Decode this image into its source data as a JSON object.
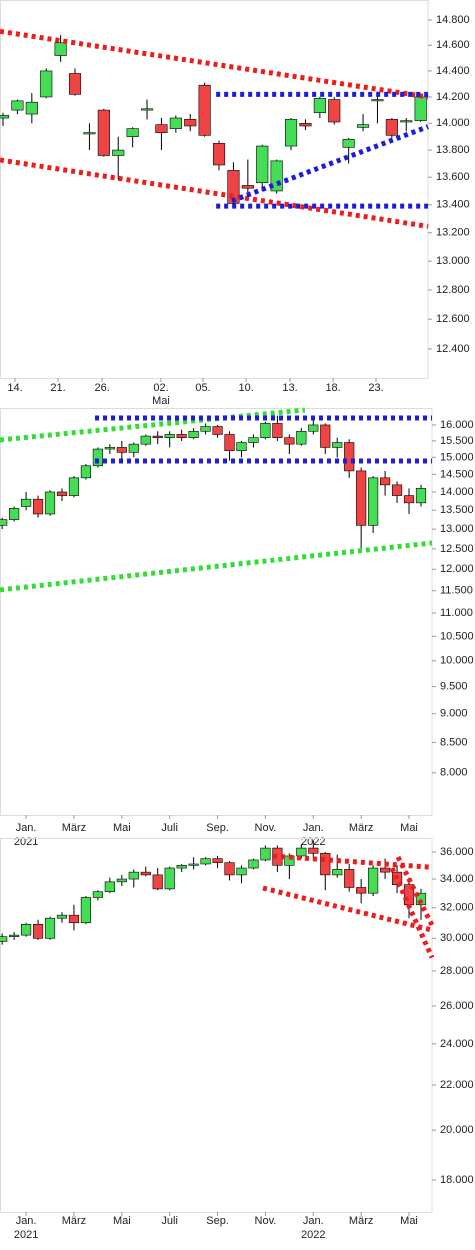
{
  "chart_data": [
    {
      "type": "candlestick",
      "log_scale": true,
      "up_color": "#44dd55",
      "down_color": "#ee4444",
      "xlim": [
        -0.21,
        29.51
      ],
      "ylim": [
        12208,
        14960
      ],
      "x": [
        0,
        1,
        2,
        3,
        4,
        5,
        6,
        7,
        8,
        9,
        10,
        11,
        12,
        13,
        14,
        15,
        16,
        17,
        18,
        19,
        20,
        21,
        22,
        23,
        24,
        25,
        26,
        27,
        28,
        29
      ],
      "candles": [
        [
          14040,
          14080,
          13980,
          14060
        ],
        [
          14100,
          14180,
          14070,
          14170
        ],
        [
          14070,
          14230,
          14000,
          14160
        ],
        [
          14200,
          14420,
          14190,
          14400
        ],
        [
          14520,
          14680,
          14470,
          14620
        ],
        [
          14380,
          14420,
          14210,
          14220
        ],
        [
          13920,
          14000,
          13800,
          13930
        ],
        [
          14100,
          14110,
          13750,
          13760
        ],
        [
          13760,
          13900,
          13580,
          13800
        ],
        [
          13900,
          13970,
          13820,
          13960
        ],
        [
          14100,
          14180,
          14030,
          14110
        ],
        [
          13990,
          14040,
          13800,
          13930
        ],
        [
          13960,
          14060,
          13930,
          14040
        ],
        [
          14030,
          14070,
          13940,
          13980
        ],
        [
          14290,
          14310,
          13900,
          13910
        ],
        [
          13850,
          13870,
          13650,
          13690
        ],
        [
          13650,
          13710,
          13380,
          13410
        ],
        [
          13540,
          13730,
          13450,
          13520
        ],
        [
          13560,
          13840,
          13500,
          13830
        ],
        [
          13500,
          13730,
          13480,
          13720
        ],
        [
          13830,
          14040,
          13800,
          14030
        ],
        [
          14000,
          14030,
          13950,
          13980
        ],
        [
          14080,
          14200,
          14040,
          14190
        ],
        [
          14180,
          14200,
          13990,
          14010
        ],
        [
          13820,
          13890,
          13700,
          13880
        ],
        [
          13970,
          14070,
          13940,
          13990
        ],
        [
          14170,
          14240,
          14000,
          14180
        ],
        [
          14030,
          14040,
          13890,
          13910
        ],
        [
          14010,
          14040,
          13940,
          14020
        ],
        [
          14020,
          14210,
          14010,
          14200
        ]
      ],
      "yticks": [
        {
          "value": 12400,
          "label": "12.400"
        },
        {
          "value": 12600,
          "label": "12.600"
        },
        {
          "value": 12800,
          "label": "12.800"
        },
        {
          "value": 13000,
          "label": "13.000"
        },
        {
          "value": 13200,
          "label": "13.200"
        },
        {
          "value": 13400,
          "label": "13.400"
        },
        {
          "value": 13600,
          "label": "13.600"
        },
        {
          "value": 13800,
          "label": "13.800"
        },
        {
          "value": 14000,
          "label": "14.000"
        },
        {
          "value": 14200,
          "label": "14.200"
        },
        {
          "value": 14400,
          "label": "14.400"
        },
        {
          "value": 14600,
          "label": "14.600"
        },
        {
          "value": 14800,
          "label": "14.800"
        }
      ],
      "xticks": [
        {
          "value": 0.83,
          "label": "14."
        },
        {
          "value": 3.82,
          "label": "21."
        },
        {
          "value": 6.88,
          "label": "26."
        },
        {
          "value": 10.97,
          "label": "02."
        },
        {
          "value": 13.89,
          "label": "05."
        },
        {
          "value": 16.88,
          "label": "10."
        },
        {
          "value": 19.93,
          "label": "13."
        },
        {
          "value": 22.92,
          "label": "18."
        },
        {
          "value": 25.9,
          "label": "23."
        }
      ],
      "sub_labels": [
        {
          "value": 10.97,
          "label": "Mai"
        }
      ],
      "trendlines": [
        {
          "color": "#ee1c1c",
          "points": [
            [
              -0.21,
              14710
            ],
            [
              29.51,
              14200
            ]
          ]
        },
        {
          "color": "#ee1c1c",
          "points": [
            [
              -0.21,
              13727
            ],
            [
              29.51,
              13245
            ]
          ]
        },
        {
          "color": "#1c1cdd",
          "points": [
            [
              14.8,
              14220
            ],
            [
              29.51,
              14220
            ]
          ]
        },
        {
          "color": "#1c1cdd",
          "points": [
            [
              14.8,
              13390
            ],
            [
              29.51,
              13390
            ]
          ]
        },
        {
          "color": "#1c1cdd",
          "points": [
            [
              15.9,
              13428
            ],
            [
              29.51,
              13975
            ]
          ]
        }
      ]
    },
    {
      "type": "candlestick",
      "log_scale": true,
      "up_color": "#44dd55",
      "down_color": "#ee4444",
      "xlim": [
        -1.09,
        16.96
      ],
      "ylim": [
        7355,
        16550
      ],
      "x": [
        -1,
        -0.5,
        0,
        0.5,
        1,
        1.5,
        2,
        2.5,
        3,
        3.5,
        4,
        4.5,
        5,
        5.5,
        6,
        6.5,
        7,
        7.5,
        8,
        8.5,
        9,
        9.5,
        10,
        10.5,
        11,
        11.5,
        12,
        12.5,
        13,
        13.5,
        14,
        14.5,
        15,
        15.5,
        16,
        16.5
      ],
      "candles": [
        [
          13100,
          13300,
          13000,
          13250
        ],
        [
          13250,
          13600,
          13200,
          13550
        ],
        [
          13600,
          14000,
          13500,
          13800
        ],
        [
          13800,
          13900,
          13300,
          13400
        ],
        [
          13400,
          14050,
          13350,
          14000
        ],
        [
          14000,
          14100,
          13750,
          13900
        ],
        [
          13900,
          14450,
          13850,
          14400
        ],
        [
          14400,
          14800,
          14350,
          14750
        ],
        [
          14750,
          15300,
          14700,
          15250
        ],
        [
          15250,
          15400,
          15100,
          15300
        ],
        [
          15300,
          15500,
          14900,
          15150
        ],
        [
          15150,
          15450,
          15000,
          15400
        ],
        [
          15400,
          15700,
          15350,
          15650
        ],
        [
          15650,
          15800,
          15400,
          15600
        ],
        [
          15600,
          15800,
          15300,
          15700
        ],
        [
          15700,
          15850,
          15500,
          15600
        ],
        [
          15600,
          15900,
          15550,
          15800
        ],
        [
          15800,
          16050,
          15700,
          15950
        ],
        [
          15950,
          16000,
          15600,
          15700
        ],
        [
          15700,
          15800,
          14900,
          15200
        ],
        [
          15200,
          15500,
          15000,
          15450
        ],
        [
          15450,
          15700,
          15300,
          15600
        ],
        [
          15600,
          16100,
          15550,
          16050
        ],
        [
          16050,
          16300,
          15500,
          15600
        ],
        [
          15600,
          15700,
          15100,
          15400
        ],
        [
          15400,
          15900,
          15350,
          15800
        ],
        [
          15800,
          16250,
          15700,
          16000
        ],
        [
          16000,
          16050,
          15100,
          15300
        ],
        [
          15300,
          15600,
          15000,
          15450
        ],
        [
          15450,
          15550,
          14400,
          14600
        ],
        [
          14600,
          14700,
          12450,
          13100
        ],
        [
          13100,
          14450,
          12900,
          14400
        ],
        [
          14400,
          14600,
          13900,
          14200
        ],
        [
          14200,
          14300,
          13700,
          13900
        ],
        [
          13900,
          14100,
          13400,
          13700
        ],
        [
          13700,
          14200,
          13600,
          14100
        ]
      ],
      "yticks": [
        {
          "value": 8000,
          "label": "8.000"
        },
        {
          "value": 8500,
          "label": "8.500"
        },
        {
          "value": 9000,
          "label": "9.000"
        },
        {
          "value": 9500,
          "label": "9.500"
        },
        {
          "value": 10000,
          "label": "10.000"
        },
        {
          "value": 10500,
          "label": "10.500"
        },
        {
          "value": 11000,
          "label": "11.000"
        },
        {
          "value": 11500,
          "label": "11.500"
        },
        {
          "value": 12000,
          "label": "12.000"
        },
        {
          "value": 12500,
          "label": "12.500"
        },
        {
          "value": 13000,
          "label": "13.000"
        },
        {
          "value": 13500,
          "label": "13.500"
        },
        {
          "value": 14000,
          "label": "14.000"
        },
        {
          "value": 14500,
          "label": "14.500"
        },
        {
          "value": 15000,
          "label": "15.000"
        },
        {
          "value": 15500,
          "label": "15.500"
        },
        {
          "value": 16000,
          "label": "16.000"
        }
      ],
      "xticks": [
        {
          "value": 0,
          "label": "Jan."
        },
        {
          "value": 2,
          "label": "März"
        },
        {
          "value": 4,
          "label": "Mai"
        },
        {
          "value": 6,
          "label": "Juli"
        },
        {
          "value": 8,
          "label": "Sep."
        },
        {
          "value": 10,
          "label": "Nov."
        },
        {
          "value": 12,
          "label": "Jan."
        },
        {
          "value": 14,
          "label": "März"
        },
        {
          "value": 16,
          "label": "Mai"
        }
      ],
      "sub_labels": [
        {
          "value": 0,
          "label": "2021"
        },
        {
          "value": 12,
          "label": "2022"
        }
      ],
      "trendlines": [
        {
          "color": "#33dd33",
          "points": [
            [
              -1.09,
              15529
            ],
            [
              11.65,
              16485
            ]
          ]
        },
        {
          "color": "#33dd33",
          "points": [
            [
              -1.09,
              11519
            ],
            [
              16.96,
              12648
            ]
          ]
        },
        {
          "color": "#1c1cdd",
          "points": [
            [
              2.88,
              16225
            ],
            [
              16.96,
              16225
            ]
          ]
        },
        {
          "color": "#1c1cdd",
          "points": [
            [
              2.88,
              14893
            ],
            [
              16.96,
              14893
            ]
          ]
        }
      ]
    },
    {
      "type": "candlestick",
      "log_scale": true,
      "up_color": "#44dd55",
      "down_color": "#ee4444",
      "xlim": [
        -1.09,
        16.96
      ],
      "ylim": [
        16823,
        37081
      ],
      "x": [
        -1,
        -0.5,
        0,
        0.5,
        1,
        1.5,
        2,
        2.5,
        3,
        3.5,
        4,
        4.5,
        5,
        5.5,
        6,
        6.5,
        7,
        7.5,
        8,
        8.5,
        9,
        9.5,
        10,
        10.5,
        11,
        11.5,
        12,
        12.5,
        13,
        13.5,
        14,
        14.5,
        15,
        15.5,
        16,
        16.5
      ],
      "candles": [
        [
          29800,
          30300,
          29600,
          30100
        ],
        [
          30100,
          30400,
          29900,
          30200
        ],
        [
          30200,
          31000,
          30100,
          30900
        ],
        [
          30900,
          31200,
          29900,
          30000
        ],
        [
          30000,
          31400,
          29900,
          31300
        ],
        [
          31300,
          31700,
          31000,
          31500
        ],
        [
          31500,
          32200,
          30500,
          31000
        ],
        [
          31000,
          32800,
          30900,
          32700
        ],
        [
          32700,
          33200,
          32500,
          33100
        ],
        [
          33100,
          34100,
          33000,
          33800
        ],
        [
          33800,
          34300,
          33500,
          34000
        ],
        [
          34000,
          34700,
          33400,
          34500
        ],
        [
          34500,
          34900,
          34200,
          34300
        ],
        [
          34300,
          34800,
          33200,
          33300
        ],
        [
          33300,
          34900,
          33200,
          34800
        ],
        [
          34800,
          35100,
          34500,
          35000
        ],
        [
          35000,
          35600,
          34700,
          35100
        ],
        [
          35100,
          35600,
          35000,
          35500
        ],
        [
          35500,
          35700,
          34800,
          35200
        ],
        [
          35200,
          35300,
          33900,
          34300
        ],
        [
          34300,
          35000,
          33700,
          34800
        ],
        [
          34800,
          35500,
          34700,
          35400
        ],
        [
          35400,
          36500,
          35300,
          36300
        ],
        [
          36300,
          36500,
          34500,
          35000
        ],
        [
          35000,
          35900,
          34000,
          35700
        ],
        [
          35700,
          36600,
          35500,
          36300
        ],
        [
          36300,
          36900,
          35400,
          35900
        ],
        [
          35900,
          36000,
          33200,
          34300
        ],
        [
          34300,
          35800,
          34100,
          34700
        ],
        [
          34700,
          35100,
          33100,
          33400
        ],
        [
          33400,
          34000,
          32300,
          33000
        ],
        [
          33000,
          35000,
          32800,
          34800
        ],
        [
          34800,
          35500,
          34000,
          34500
        ],
        [
          34500,
          35000,
          33000,
          33600
        ],
        [
          33600,
          34100,
          31300,
          32200
        ],
        [
          32200,
          33300,
          31200,
          33000
        ]
      ],
      "yticks": [
        {
          "value": 18000,
          "label": "18.000"
        },
        {
          "value": 20000,
          "label": "20.000"
        },
        {
          "value": 22000,
          "label": "22.000"
        },
        {
          "value": 24000,
          "label": "24.000"
        },
        {
          "value": 26000,
          "label": "26.000"
        },
        {
          "value": 28000,
          "label": "28.000"
        },
        {
          "value": 30000,
          "label": "30.000"
        },
        {
          "value": 32000,
          "label": "32.000"
        },
        {
          "value": 34000,
          "label": "34.000"
        },
        {
          "value": 36000,
          "label": "36.000"
        }
      ],
      "xticks": [
        {
          "value": 0,
          "label": "Jan."
        },
        {
          "value": 2,
          "label": "März"
        },
        {
          "value": 4,
          "label": "Mai"
        },
        {
          "value": 6,
          "label": "Juli"
        },
        {
          "value": 8,
          "label": "Sep."
        },
        {
          "value": 10,
          "label": "Nov."
        },
        {
          "value": 12,
          "label": "Jan."
        },
        {
          "value": 14,
          "label": "März"
        },
        {
          "value": 16,
          "label": "Mai"
        }
      ],
      "sub_labels": [
        {
          "value": 0,
          "label": "2021"
        },
        {
          "value": 12,
          "label": "2022"
        }
      ],
      "trendlines": [
        {
          "color": "#ee1c1c",
          "points": [
            [
              10.32,
              35697
            ],
            [
              16.96,
              34854
            ]
          ]
        },
        {
          "color": "#ee1c1c",
          "points": [
            [
              9.9,
              33361
            ],
            [
              16.96,
              30525
            ]
          ]
        },
        {
          "color": "#ee1c1c",
          "points": [
            [
              15.54,
              35620
            ],
            [
              16.96,
              30840
            ]
          ]
        },
        {
          "color": "#ee1c1c",
          "points": [
            [
              15.29,
              34800
            ],
            [
              16.96,
              28800
            ]
          ]
        }
      ]
    }
  ]
}
